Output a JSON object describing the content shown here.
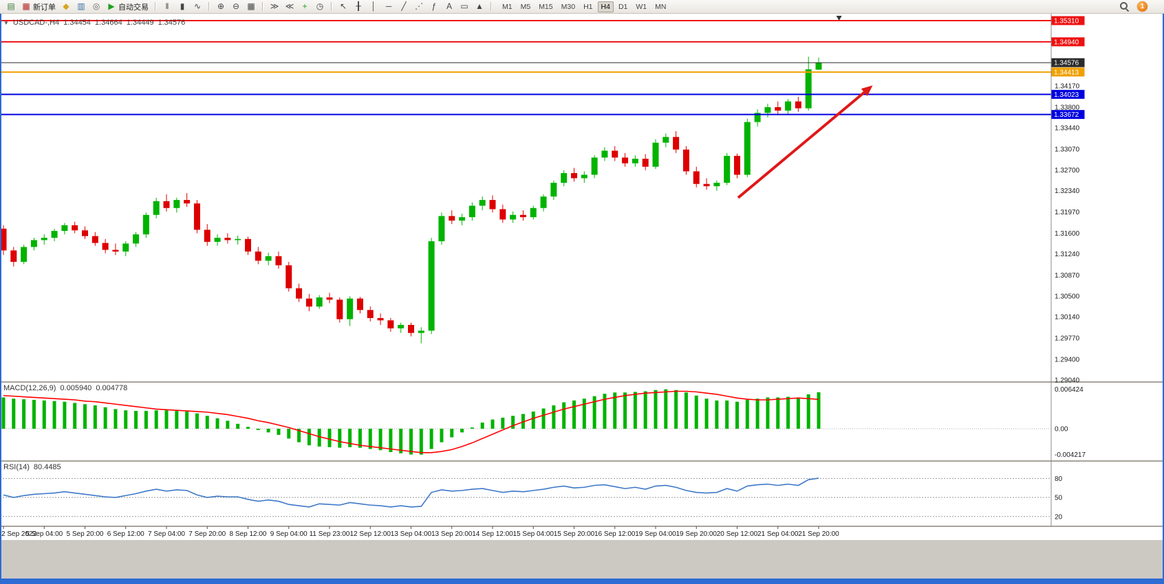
{
  "toolbar": {
    "notification_count": "1",
    "items": [
      {
        "type": "icon",
        "name": "new-chart",
        "glyph": "▤",
        "color": "#3f7d3f"
      },
      {
        "type": "button",
        "name": "new-order",
        "label": "新订单",
        "glyph": "▦",
        "color": "#b22222"
      },
      {
        "type": "icon",
        "name": "market-watch",
        "glyph": "◆",
        "color": "#d9a520"
      },
      {
        "type": "icon",
        "name": "data-window",
        "glyph": "▥",
        "color": "#3a6ea5"
      },
      {
        "type": "icon",
        "name": "navigator",
        "glyph": "◎",
        "color": "#666666"
      },
      {
        "type": "button",
        "name": "auto-trading",
        "label": "自动交易",
        "glyph": "▶",
        "color": "#21a121"
      },
      {
        "type": "sep"
      },
      {
        "type": "icon",
        "name": "bar-chart-mode",
        "glyph": "‖",
        "color": "#444444"
      },
      {
        "type": "icon",
        "name": "candlestick-mode",
        "glyph": "▮",
        "color": "#444444"
      },
      {
        "type": "icon",
        "name": "line-chart-mode",
        "glyph": "∿",
        "color": "#444444"
      },
      {
        "type": "sep"
      },
      {
        "type": "icon",
        "name": "zoom-in",
        "glyph": "⊕",
        "color": "#444444"
      },
      {
        "type": "icon",
        "name": "zoom-out",
        "glyph": "⊖",
        "color": "#444444"
      },
      {
        "type": "icon",
        "name": "tile-windows",
        "glyph": "▦",
        "color": "#444444"
      },
      {
        "type": "sep"
      },
      {
        "type": "icon",
        "name": "auto-scroll",
        "glyph": "≫",
        "color": "#444444"
      },
      {
        "type": "icon",
        "name": "chart-shift",
        "glyph": "≪",
        "color": "#444444"
      },
      {
        "type": "icon",
        "name": "indicators-add",
        "glyph": "+",
        "color": "#18a018"
      },
      {
        "type": "icon",
        "name": "periods-clock",
        "glyph": "◷",
        "color": "#444444"
      },
      {
        "type": "sep"
      },
      {
        "type": "icon",
        "name": "cursor",
        "glyph": "↖",
        "color": "#444444"
      },
      {
        "type": "icon",
        "name": "crosshair",
        "glyph": "╂",
        "color": "#444444"
      },
      {
        "type": "icon",
        "name": "vertical-line-tool",
        "glyph": "│",
        "color": "#444444"
      },
      {
        "type": "icon",
        "name": "horizontal-line-tool",
        "glyph": "─",
        "color": "#444444"
      },
      {
        "type": "icon",
        "name": "trendline-tool",
        "glyph": "╱",
        "color": "#444444"
      },
      {
        "type": "icon",
        "name": "channel-tool",
        "glyph": "⋰",
        "color": "#444444"
      },
      {
        "type": "icon",
        "name": "fibonacci-tool",
        "glyph": "ƒ",
        "color": "#444444"
      },
      {
        "type": "icon",
        "name": "text-tool",
        "glyph": "A",
        "color": "#444444"
      },
      {
        "type": "icon",
        "name": "label-tool",
        "glyph": "▭",
        "color": "#444444"
      },
      {
        "type": "icon",
        "name": "shapes-tool",
        "glyph": "▲",
        "color": "#444444"
      },
      {
        "type": "sep"
      }
    ],
    "timeframes": [
      {
        "label": "M1"
      },
      {
        "label": "M5"
      },
      {
        "label": "M15"
      },
      {
        "label": "M30"
      },
      {
        "label": "H1"
      },
      {
        "label": "H4",
        "active": true
      },
      {
        "label": "D1"
      },
      {
        "label": "W1"
      },
      {
        "label": "MN"
      }
    ]
  },
  "chart": {
    "title": {
      "dropdown": "▼",
      "symbol_tf": "USDCAD-,H4",
      "open": "1.34454",
      "high": "1.34664",
      "low": "1.34449",
      "close": "1.34576"
    }
  },
  "indicators": {
    "macd": {
      "label": "MACD(12,26,9)",
      "value_main": "0.005940",
      "value_signal": "0.004778"
    },
    "rsi": {
      "label": "RSI(14)",
      "value": "80.4485"
    }
  },
  "chart_data": {
    "type": "candlestick",
    "symbol": "USDCAD-",
    "timeframe": "H4",
    "current_ohlc": {
      "open": 1.34454,
      "high": 1.34664,
      "low": 1.34449,
      "close": 1.34576
    },
    "colors": {
      "bull": "#00b300",
      "bear": "#dd0000",
      "macd_hist": "#00b300",
      "macd_signal": "#ff0000",
      "rsi_line": "#3c78c8",
      "arrow": "#e01818"
    },
    "y_axis": {
      "max": 1.3531,
      "min": 1.2904,
      "ticks": [
        "1.34170",
        "1.33800",
        "1.33440",
        "1.33070",
        "1.32700",
        "1.32340",
        "1.31970",
        "1.31600",
        "1.31240",
        "1.30870",
        "1.30500",
        "1.30140",
        "1.29770",
        "1.29400",
        "1.29040"
      ]
    },
    "price_lines": [
      {
        "label": "1.35310",
        "price": 1.3531,
        "color": "#ee1111",
        "width": 2
      },
      {
        "label": "1.34940",
        "price": 1.3494,
        "color": "#ee1111",
        "width": 2
      },
      {
        "label": "1.34576",
        "price": 1.34576,
        "color": "#2b2b2b",
        "width": 1,
        "current": true
      },
      {
        "label": "1.34413",
        "price": 1.34413,
        "color": "#f0a000",
        "width": 2
      },
      {
        "label": "1.34023",
        "price": 1.34023,
        "color": "#0000e0",
        "width": 2
      },
      {
        "label": "1.33672",
        "price": 1.33672,
        "color": "#0000e0",
        "width": 2
      }
    ],
    "x_labels": [
      "2 Sep 2022",
      "5 Sep 04:00",
      "5 Sep 20:00",
      "6 Sep 12:00",
      "7 Sep 04:00",
      "7 Sep 20:00",
      "8 Sep 12:00",
      "9 Sep 04:00",
      "11 Sep 23:00",
      "12 Sep 12:00",
      "13 Sep 04:00",
      "13 Sep 20:00",
      "14 Sep 12:00",
      "15 Sep 04:00",
      "15 Sep 20:00",
      "16 Sep 12:00",
      "19 Sep 04:00",
      "19 Sep 20:00",
      "20 Sep 12:00",
      "21 Sep 04:00",
      "21 Sep 20:00"
    ],
    "bars_per_label": 4,
    "candles": [
      [
        1.3168,
        1.3174,
        1.3122,
        1.313
      ],
      [
        1.313,
        1.3136,
        1.3102,
        1.311
      ],
      [
        1.311,
        1.314,
        1.3106,
        1.3136
      ],
      [
        1.3136,
        1.3152,
        1.313,
        1.3148
      ],
      [
        1.3148,
        1.3158,
        1.314,
        1.3152
      ],
      [
        1.3152,
        1.3168,
        1.3146,
        1.3164
      ],
      [
        1.3164,
        1.3178,
        1.3158,
        1.3174
      ],
      [
        1.3174,
        1.318,
        1.316,
        1.3165
      ],
      [
        1.3165,
        1.3172,
        1.315,
        1.3155
      ],
      [
        1.3155,
        1.3162,
        1.3138,
        1.3143
      ],
      [
        1.3143,
        1.315,
        1.3125,
        1.3131
      ],
      [
        1.3131,
        1.3142,
        1.3122,
        1.3128
      ],
      [
        1.3128,
        1.3146,
        1.312,
        1.3142
      ],
      [
        1.3142,
        1.3162,
        1.3136,
        1.3158
      ],
      [
        1.3158,
        1.3196,
        1.3152,
        1.3192
      ],
      [
        1.3192,
        1.3222,
        1.3186,
        1.3216
      ],
      [
        1.3216,
        1.3228,
        1.3198,
        1.3204
      ],
      [
        1.3204,
        1.3222,
        1.3196,
        1.3218
      ],
      [
        1.3218,
        1.323,
        1.3206,
        1.3212
      ],
      [
        1.3212,
        1.3218,
        1.316,
        1.3166
      ],
      [
        1.3166,
        1.3176,
        1.3138,
        1.3145
      ],
      [
        1.3145,
        1.3158,
        1.3138,
        1.3152
      ],
      [
        1.3152,
        1.316,
        1.3142,
        1.3148
      ],
      [
        1.3148,
        1.3156,
        1.314,
        1.315
      ],
      [
        1.315,
        1.3154,
        1.3122,
        1.3128
      ],
      [
        1.3128,
        1.3136,
        1.3106,
        1.3112
      ],
      [
        1.3112,
        1.3126,
        1.3104,
        1.312
      ],
      [
        1.312,
        1.3128,
        1.3098,
        1.3104
      ],
      [
        1.3104,
        1.311,
        1.3058,
        1.3064
      ],
      [
        1.3064,
        1.3072,
        1.304,
        1.3046
      ],
      [
        1.3046,
        1.3054,
        1.3024,
        1.3032
      ],
      [
        1.3032,
        1.3052,
        1.3028,
        1.3048
      ],
      [
        1.3048,
        1.3056,
        1.3038,
        1.3044
      ],
      [
        1.3044,
        1.3048,
        1.3004,
        1.301
      ],
      [
        1.301,
        1.305,
        1.2998,
        1.3046
      ],
      [
        1.3046,
        1.3049,
        1.302,
        1.3026
      ],
      [
        1.3026,
        1.3032,
        1.3006,
        1.3012
      ],
      [
        1.3012,
        1.302,
        1.3,
        1.3008
      ],
      [
        1.3008,
        1.3012,
        1.2988,
        1.2994
      ],
      [
        1.2994,
        1.3004,
        1.2986,
        1.3
      ],
      [
        1.3,
        1.3004,
        1.298,
        1.2986
      ],
      [
        1.2986,
        1.2996,
        1.2968,
        1.299
      ],
      [
        1.299,
        1.3152,
        1.2984,
        1.3146
      ],
      [
        1.3146,
        1.3196,
        1.314,
        1.319
      ],
      [
        1.319,
        1.32,
        1.3176,
        1.3182
      ],
      [
        1.3182,
        1.3194,
        1.3174,
        1.3188
      ],
      [
        1.3188,
        1.3214,
        1.3182,
        1.3208
      ],
      [
        1.3208,
        1.3224,
        1.32,
        1.3218
      ],
      [
        1.3218,
        1.3226,
        1.3196,
        1.3202
      ],
      [
        1.3202,
        1.321,
        1.3178,
        1.3184
      ],
      [
        1.3184,
        1.3198,
        1.3178,
        1.3192
      ],
      [
        1.3192,
        1.32,
        1.3182,
        1.3188
      ],
      [
        1.3188,
        1.3208,
        1.3184,
        1.3204
      ],
      [
        1.3204,
        1.3228,
        1.3198,
        1.3224
      ],
      [
        1.3224,
        1.3252,
        1.3218,
        1.3248
      ],
      [
        1.3248,
        1.327,
        1.3242,
        1.3265
      ],
      [
        1.3265,
        1.3274,
        1.325,
        1.3256
      ],
      [
        1.3256,
        1.3268,
        1.3248,
        1.3262
      ],
      [
        1.3262,
        1.3296,
        1.3256,
        1.3292
      ],
      [
        1.3292,
        1.331,
        1.3286,
        1.3304
      ],
      [
        1.3304,
        1.3312,
        1.3286,
        1.3292
      ],
      [
        1.3292,
        1.33,
        1.3276,
        1.3282
      ],
      [
        1.3282,
        1.3296,
        1.3276,
        1.329
      ],
      [
        1.329,
        1.3298,
        1.327,
        1.3276
      ],
      [
        1.3276,
        1.3324,
        1.3272,
        1.3318
      ],
      [
        1.3318,
        1.3334,
        1.331,
        1.3328
      ],
      [
        1.3328,
        1.3338,
        1.33,
        1.3306
      ],
      [
        1.3306,
        1.3312,
        1.3262,
        1.3268
      ],
      [
        1.3268,
        1.3276,
        1.324,
        1.3246
      ],
      [
        1.3246,
        1.3256,
        1.3236,
        1.3242
      ],
      [
        1.3242,
        1.3252,
        1.3234,
        1.3248
      ],
      [
        1.3248,
        1.33,
        1.3244,
        1.3295
      ],
      [
        1.3295,
        1.3299,
        1.3256,
        1.3262
      ],
      [
        1.3262,
        1.336,
        1.3258,
        1.3354
      ],
      [
        1.3354,
        1.3376,
        1.3346,
        1.337
      ],
      [
        1.337,
        1.3386,
        1.3362,
        1.338
      ],
      [
        1.338,
        1.339,
        1.3368,
        1.3374
      ],
      [
        1.3374,
        1.3394,
        1.3366,
        1.339
      ],
      [
        1.339,
        1.3398,
        1.3372,
        1.3378
      ],
      [
        1.3378,
        1.3468,
        1.3374,
        1.3446
      ],
      [
        1.34454,
        1.34664,
        1.34449,
        1.34576
      ]
    ],
    "macd": {
      "scale_labels": [
        {
          "text": "0.006424",
          "value": 0.006424
        },
        {
          "text": "0.00",
          "value": 0
        },
        {
          "text": "-0.004217",
          "value": -0.004217
        }
      ],
      "range": {
        "max": 0.00705,
        "min": -0.0047
      },
      "histogram": [
        0.0051,
        0.0049,
        0.0048,
        0.0047,
        0.0046,
        0.0045,
        0.0044,
        0.0042,
        0.004,
        0.0038,
        0.0035,
        0.0032,
        0.003,
        0.0029,
        0.0029,
        0.003,
        0.003,
        0.0029,
        0.0028,
        0.0025,
        0.0021,
        0.0017,
        0.0013,
        0.0008,
        0.0003,
        -0.0002,
        -0.0006,
        -0.001,
        -0.0016,
        -0.0022,
        -0.0027,
        -0.0029,
        -0.003,
        -0.0031,
        -0.003,
        -0.0031,
        -0.0033,
        -0.0035,
        -0.0038,
        -0.004,
        -0.0042,
        -0.004217,
        -0.0033,
        -0.0022,
        -0.0014,
        -0.0006,
        0.0002,
        0.001,
        0.0015,
        0.0018,
        0.0021,
        0.0024,
        0.0028,
        0.0033,
        0.0038,
        0.0043,
        0.0046,
        0.0049,
        0.0053,
        0.0057,
        0.0059,
        0.0059,
        0.006,
        0.0061,
        0.0063,
        0.006424,
        0.0063,
        0.0059,
        0.0054,
        0.0049,
        0.0046,
        0.0046,
        0.0044,
        0.0047,
        0.0049,
        0.0051,
        0.0051,
        0.0052,
        0.0051,
        0.0056,
        0.00594
      ],
      "signal": [
        0.0054,
        0.0053,
        0.0052,
        0.0051,
        0.005,
        0.0049,
        0.0048,
        0.0047,
        0.0045,
        0.0044,
        0.0042,
        0.004,
        0.0038,
        0.0036,
        0.0034,
        0.0032,
        0.0031,
        0.003,
        0.0029,
        0.0028,
        0.0027,
        0.0025,
        0.0023,
        0.002,
        0.0017,
        0.0013,
        0.001,
        0.0006,
        0.0002,
        -0.0003,
        -0.0008,
        -0.0013,
        -0.0017,
        -0.0021,
        -0.0024,
        -0.0027,
        -0.0029,
        -0.0031,
        -0.0033,
        -0.0035,
        -0.0037,
        -0.0039,
        -0.0039,
        -0.0037,
        -0.0034,
        -0.0029,
        -0.0023,
        -0.0016,
        -0.0009,
        -0.0002,
        0.0005,
        0.0011,
        0.0017,
        0.0022,
        0.0027,
        0.0032,
        0.0036,
        0.004,
        0.0044,
        0.0048,
        0.0051,
        0.0054,
        0.0056,
        0.0058,
        0.0059,
        0.006,
        0.0061,
        0.0061,
        0.006,
        0.0058,
        0.0056,
        0.0053,
        0.005,
        0.0048,
        0.0047,
        0.0047,
        0.0048,
        0.0049,
        0.005,
        0.0049,
        0.004778
      ]
    },
    "rsi": {
      "current": 80.4485,
      "levels": [
        {
          "text": "80",
          "value": 80
        },
        {
          "text": "50",
          "value": 50
        },
        {
          "text": "20",
          "value": 20
        }
      ],
      "range": {
        "max": 102,
        "min": 10
      },
      "line": [
        54,
        50,
        53,
        55,
        56,
        57,
        59,
        57,
        55,
        53,
        51,
        50,
        53,
        56,
        60,
        63,
        60,
        62,
        61,
        54,
        50,
        52,
        51,
        51,
        47,
        44,
        46,
        44,
        39,
        37,
        35,
        40,
        39,
        38,
        42,
        40,
        38,
        37,
        35,
        37,
        35,
        36,
        58,
        62,
        60,
        61,
        63,
        64,
        61,
        58,
        60,
        59,
        61,
        63,
        66,
        68,
        65,
        66,
        69,
        70,
        67,
        64,
        66,
        63,
        68,
        69,
        66,
        61,
        58,
        57,
        58,
        64,
        60,
        68,
        70,
        71,
        69,
        71,
        69,
        78,
        80.4485
      ]
    },
    "annotations": {
      "arrow": {
        "from_bar": 72.1,
        "from_price": 1.3222,
        "to_bar": 85.3,
        "to_price": 1.3418,
        "color": "#e01818"
      },
      "marker_bar": 82
    }
  }
}
